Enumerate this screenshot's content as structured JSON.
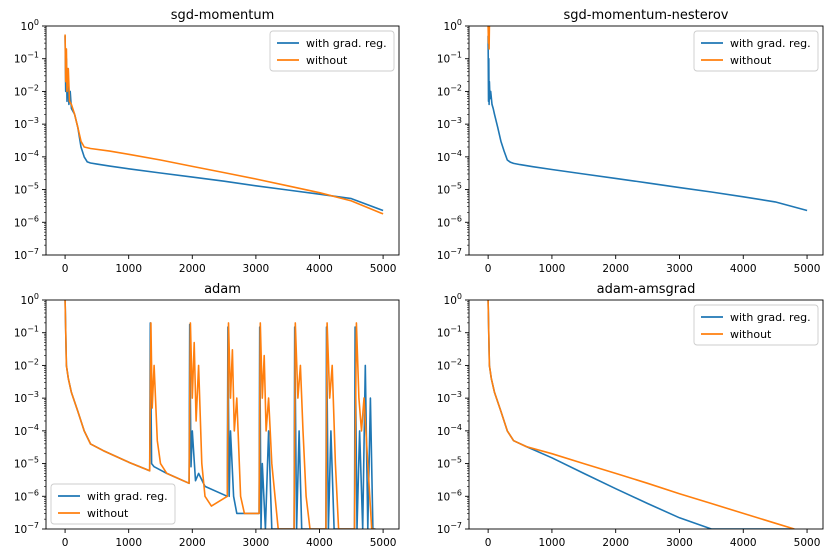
{
  "chart_data": [
    {
      "type": "line",
      "title": "sgd-momentum",
      "scale": "log",
      "xlim": [
        -300,
        5250
      ],
      "ylim": [
        1e-07,
        1
      ],
      "xticks": [
        "0",
        "1000",
        "2000",
        "3000",
        "4000",
        "5000"
      ],
      "yticks": [
        "10^-7",
        "10^-6",
        "10^-5",
        "10^-4",
        "10^-3",
        "10^-2",
        "10^-1",
        "10^0"
      ],
      "legend": "top-right",
      "series": [
        {
          "name": "with grad. reg.",
          "color": "#1f77b4",
          "x": [
            0,
            10,
            20,
            30,
            40,
            60,
            80,
            100,
            150,
            200,
            250,
            300,
            350,
            400,
            500,
            700,
            1000,
            1500,
            2000,
            2500,
            3000,
            3500,
            4000,
            4500,
            5000
          ],
          "y": [
            0.5,
            0.01,
            0.1,
            0.005,
            0.05,
            0.004,
            0.01,
            0.003,
            0.002,
            0.0008,
            0.0002,
            0.0001,
            7e-05,
            6.5e-05,
            6e-05,
            5.2e-05,
            4.3e-05,
            3.2e-05,
            2.4e-05,
            1.8e-05,
            1.3e-05,
            9.7e-06,
            7.2e-06,
            5.3e-06,
            2.3e-06
          ]
        },
        {
          "name": "without",
          "color": "#ff7f0e",
          "x": [
            0,
            10,
            20,
            30,
            50,
            70,
            100,
            150,
            200,
            250,
            300,
            400,
            700,
            1000,
            1500,
            2000,
            2500,
            3000,
            3500,
            4000,
            4500,
            5000
          ],
          "y": [
            0.55,
            0.02,
            0.2,
            0.01,
            0.05,
            0.005,
            0.004,
            0.002,
            0.0008,
            0.0003,
            0.0002,
            0.00018,
            0.00015,
            0.00012,
            8e-05,
            5.1e-05,
            3.3e-05,
            2.1e-05,
            1.3e-05,
            8e-06,
            4.5e-06,
            1.8e-06
          ]
        }
      ]
    },
    {
      "type": "line",
      "title": "sgd-momentum-nesterov",
      "scale": "log",
      "xlim": [
        -300,
        5250
      ],
      "ylim": [
        1e-07,
        1
      ],
      "xticks": [
        "0",
        "1000",
        "2000",
        "3000",
        "4000",
        "5000"
      ],
      "yticks": [
        "10^-7",
        "10^-6",
        "10^-5",
        "10^-4",
        "10^-3",
        "10^-2",
        "10^-1",
        "10^0"
      ],
      "legend": "top-right",
      "series": [
        {
          "name": "with grad. reg.",
          "color": "#1f77b4",
          "x": [
            0,
            5,
            10,
            15,
            20,
            30,
            40,
            60,
            80,
            100,
            150,
            200,
            250,
            300,
            350,
            400,
            500,
            700,
            1000,
            1500,
            2000,
            2500,
            3000,
            3500,
            4000,
            4500,
            5000
          ],
          "y": [
            0.5,
            0.005,
            0.1,
            0.004,
            0.02,
            0.006,
            0.01,
            0.004,
            0.003,
            0.002,
            0.0008,
            0.0003,
            0.00015,
            8e-05,
            6.8e-05,
            6.3e-05,
            5.8e-05,
            5e-05,
            4.1e-05,
            3e-05,
            2.2e-05,
            1.6e-05,
            1.15e-05,
            8.4e-06,
            6e-06,
            4.2e-06,
            2.3e-06
          ]
        },
        {
          "name": "without",
          "color": "#ff7f0e",
          "x": [
            0,
            5,
            10,
            15,
            20
          ],
          "y": [
            1,
            0.3,
            1,
            0.2,
            1
          ]
        }
      ]
    },
    {
      "type": "line",
      "title": "adam",
      "scale": "log",
      "xlim": [
        -300,
        5250
      ],
      "ylim": [
        1e-07,
        1
      ],
      "xticks": [
        "0",
        "1000",
        "2000",
        "3000",
        "4000",
        "5000"
      ],
      "yticks": [
        "10^-7",
        "10^-6",
        "10^-5",
        "10^-4",
        "10^-3",
        "10^-2",
        "10^-1",
        "10^0"
      ],
      "legend": "bottom-left",
      "series": [
        {
          "name": "with grad. reg.",
          "color": "#1f77b4",
          "x": [
            0,
            20,
            50,
            100,
            200,
            300,
            400,
            600,
            1000,
            1330,
            1340,
            1360,
            1400,
            1600,
            1950,
            1960,
            1980,
            2000,
            2050,
            2100,
            2200,
            2550,
            2560,
            2580,
            2600,
            2650,
            2700,
            3050,
            3060,
            3080,
            3100,
            3150,
            3200,
            3250,
            3300,
            3600,
            3610,
            3640,
            3680,
            3720,
            3780,
            4100,
            4110,
            4140,
            4180,
            4230,
            4300,
            4550,
            4560,
            4590,
            4630,
            4680,
            4720,
            4760,
            4800,
            4840,
            4880
          ],
          "y": [
            1,
            0.01,
            0.004,
            0.0015,
            0.0004,
            0.0001,
            4e-05,
            2.5e-05,
            1.1e-05,
            6e-06,
            0.2,
            1e-05,
            8e-06,
            5e-06,
            2.5e-06,
            0.18,
            8e-06,
            0.0001,
            3e-06,
            5e-06,
            2e-06,
            1e-06,
            0.15,
            1e-06,
            0.0001,
            1e-06,
            3e-07,
            3e-07,
            0.15,
            1e-07,
            1e-05,
            1e-07,
            0.0001,
            1e-07,
            1e-07,
            1e-07,
            0.15,
            1e-07,
            0.0001,
            1e-07,
            1e-07,
            1e-07,
            0.15,
            1e-07,
            0.0001,
            1e-07,
            1e-07,
            1e-07,
            0.15,
            1e-07,
            0.0001,
            1e-07,
            0.01,
            1e-07,
            0.001,
            1e-07,
            1e-07
          ]
        },
        {
          "name": "without",
          "color": "#ff7f0e",
          "x": [
            0,
            20,
            50,
            100,
            200,
            300,
            400,
            600,
            1000,
            1330,
            1350,
            1370,
            1400,
            1450,
            1500,
            1600,
            1950,
            1970,
            2000,
            2030,
            2060,
            2100,
            2150,
            2200,
            2300,
            2550,
            2570,
            2600,
            2630,
            2660,
            2700,
            2760,
            2820,
            3050,
            3070,
            3100,
            3130,
            3160,
            3200,
            3250,
            3300,
            3350,
            3400,
            3600,
            3620,
            3660,
            3700,
            3740,
            3790,
            3850,
            3900,
            4100,
            4120,
            4160,
            4200,
            4250,
            4300,
            4350,
            4550,
            4580,
            4620,
            4660,
            4700,
            4760,
            4820,
            4870
          ],
          "y": [
            1,
            0.01,
            0.004,
            0.0015,
            0.0004,
            0.0001,
            4e-05,
            2.5e-05,
            1.1e-05,
            6e-06,
            0.2,
            0.0005,
            0.01,
            5e-05,
            1e-05,
            5e-06,
            2.5e-06,
            0.2,
            0.001,
            0.05,
            0.0002,
            0.01,
            1e-05,
            1e-06,
            5e-07,
            1e-06,
            0.2,
            0.001,
            0.03,
            0.0001,
            0.001,
            1e-06,
            3e-07,
            3e-07,
            0.2,
            0.001,
            0.02,
            0.0001,
            0.001,
            1e-05,
            1e-06,
            1e-07,
            1e-07,
            1e-07,
            0.2,
            0.001,
            0.01,
            0.0001,
            1e-06,
            1e-07,
            1e-07,
            1e-07,
            0.2,
            0.001,
            0.01,
            1e-05,
            1e-07,
            1e-07,
            1e-07,
            0.2,
            0.001,
            0.0001,
            0.001,
            1e-05,
            1e-07,
            1e-07
          ]
        }
      ]
    },
    {
      "type": "line",
      "title": "adam-amsgrad",
      "scale": "log",
      "xlim": [
        -300,
        5250
      ],
      "ylim": [
        1e-07,
        1
      ],
      "xticks": [
        "0",
        "1000",
        "2000",
        "3000",
        "4000",
        "5000"
      ],
      "yticks": [
        "10^-7",
        "10^-6",
        "10^-5",
        "10^-4",
        "10^-3",
        "10^-2",
        "10^-1",
        "10^0"
      ],
      "legend": "top-right",
      "series": [
        {
          "name": "with grad. reg.",
          "color": "#1f77b4",
          "x": [
            0,
            20,
            50,
            100,
            200,
            300,
            400,
            600,
            1000,
            1500,
            2000,
            2500,
            3000,
            3500,
            4000,
            4500,
            4800
          ],
          "y": [
            1,
            0.01,
            0.004,
            0.0015,
            0.0004,
            0.0001,
            5e-05,
            3.3e-05,
            1.5e-05,
            5e-06,
            1.7e-06,
            6e-07,
            2.2e-07,
            1e-07,
            1e-07,
            1e-07,
            1e-07
          ]
        },
        {
          "name": "without",
          "color": "#ff7f0e",
          "x": [
            0,
            20,
            50,
            100,
            200,
            300,
            400,
            600,
            1000,
            1500,
            2000,
            2500,
            3000,
            3500,
            4000,
            4500,
            4800
          ],
          "y": [
            1,
            0.01,
            0.004,
            0.0015,
            0.0004,
            0.0001,
            5e-05,
            3.3e-05,
            2e-05,
            1e-05,
            5e-06,
            2.5e-06,
            1.2e-06,
            6e-07,
            3e-07,
            1.5e-07,
            1e-07
          ]
        }
      ]
    }
  ]
}
